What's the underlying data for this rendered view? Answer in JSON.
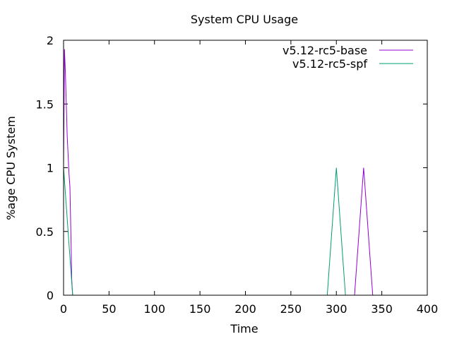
{
  "chart_data": {
    "type": "line",
    "title": "System CPU Usage",
    "xlabel": "Time",
    "ylabel": "%age CPU System",
    "xlim": [
      0,
      400
    ],
    "ylim": [
      0,
      2
    ],
    "xticks": [
      0,
      50,
      100,
      150,
      200,
      250,
      300,
      350,
      400
    ],
    "xtick_labels": [
      "0",
      "50",
      "100",
      "150",
      "200",
      "250",
      "300",
      "350",
      "400"
    ],
    "yticks": [
      0,
      0.5,
      1,
      1.5,
      2
    ],
    "ytick_labels": [
      "0",
      "0.5",
      "1",
      "1.5",
      "2"
    ],
    "grid": false,
    "legend_position": "top-right",
    "series": [
      {
        "name": "v5.12-rc5-base",
        "color": "#9400d3",
        "x": [
          0,
          1,
          2,
          3,
          4,
          5,
          6,
          7,
          8,
          9,
          10,
          320,
          330,
          340
        ],
        "y": [
          1.0,
          1.93,
          1.75,
          1.5,
          1.25,
          1.1,
          0.95,
          0.85,
          0.5,
          0.12,
          0,
          0,
          1.0,
          0
        ]
      },
      {
        "name": "v5.12-rc5-spf",
        "color": "#009e73",
        "x": [
          0,
          10,
          290,
          300,
          310
        ],
        "y": [
          1.0,
          0,
          0,
          1.0,
          0
        ]
      }
    ]
  }
}
